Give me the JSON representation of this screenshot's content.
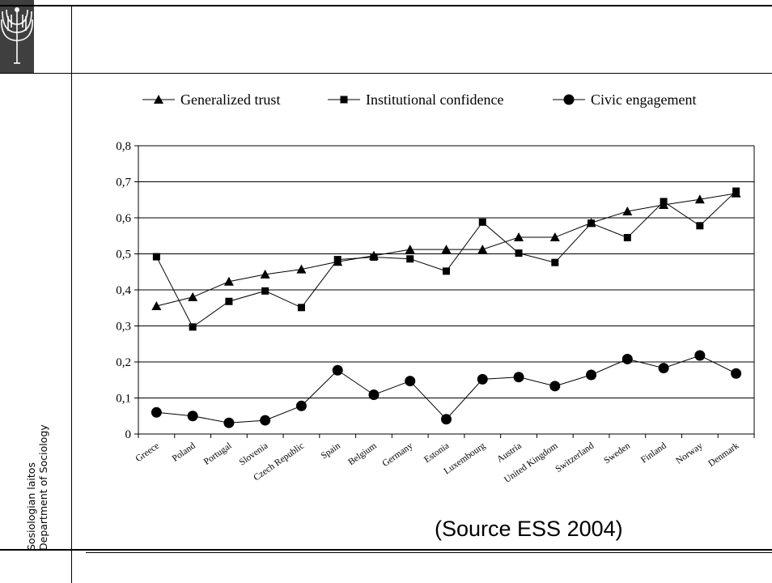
{
  "sidebar": {
    "line1": "Sosiologian laitos",
    "line2": "Department of Sociology"
  },
  "source_note": "(Source ESS 2004)",
  "chart_data": {
    "type": "line",
    "categories": [
      "Greece",
      "Poland",
      "Portugal",
      "Slovenia",
      "Czech Republic",
      "Spain",
      "Belgium",
      "Germany",
      "Estonia",
      "Luxembourg",
      "Austria",
      "United Kingdom",
      "Switzerland",
      "Sweden",
      "Finland",
      "Norway",
      "Denmark"
    ],
    "ylim": [
      0,
      0.8
    ],
    "yticks": [
      0,
      0.1,
      0.2,
      0.3,
      0.4,
      0.5,
      0.6,
      0.7,
      0.8
    ],
    "ytick_labels": [
      "0",
      "0,1",
      "0,2",
      "0,3",
      "0,4",
      "0,5",
      "0,6",
      "0,7",
      "0,8"
    ],
    "grid": true,
    "legend_position": "top",
    "series": [
      {
        "name": "Generalized trust",
        "marker": "triangle",
        "values": [
          0.355,
          0.38,
          0.423,
          0.443,
          0.457,
          0.478,
          0.495,
          0.512,
          0.512,
          0.512,
          0.546,
          0.546,
          0.586,
          0.618,
          0.636,
          0.651,
          0.668
        ]
      },
      {
        "name": "Institutional confidence",
        "marker": "square",
        "values": [
          0.492,
          0.297,
          0.368,
          0.397,
          0.351,
          0.484,
          0.491,
          0.486,
          0.452,
          0.588,
          0.502,
          0.476,
          0.585,
          0.545,
          0.645,
          0.578,
          0.674
        ]
      },
      {
        "name": "Civic engagement",
        "marker": "circle",
        "values": [
          0.06,
          0.05,
          0.031,
          0.038,
          0.078,
          0.177,
          0.109,
          0.147,
          0.041,
          0.152,
          0.158,
          0.133,
          0.164,
          0.208,
          0.183,
          0.218,
          0.168
        ]
      }
    ]
  },
  "colors": {
    "line": "#000000",
    "grid": "#000000",
    "logo_bg": "#3f3f3f"
  }
}
